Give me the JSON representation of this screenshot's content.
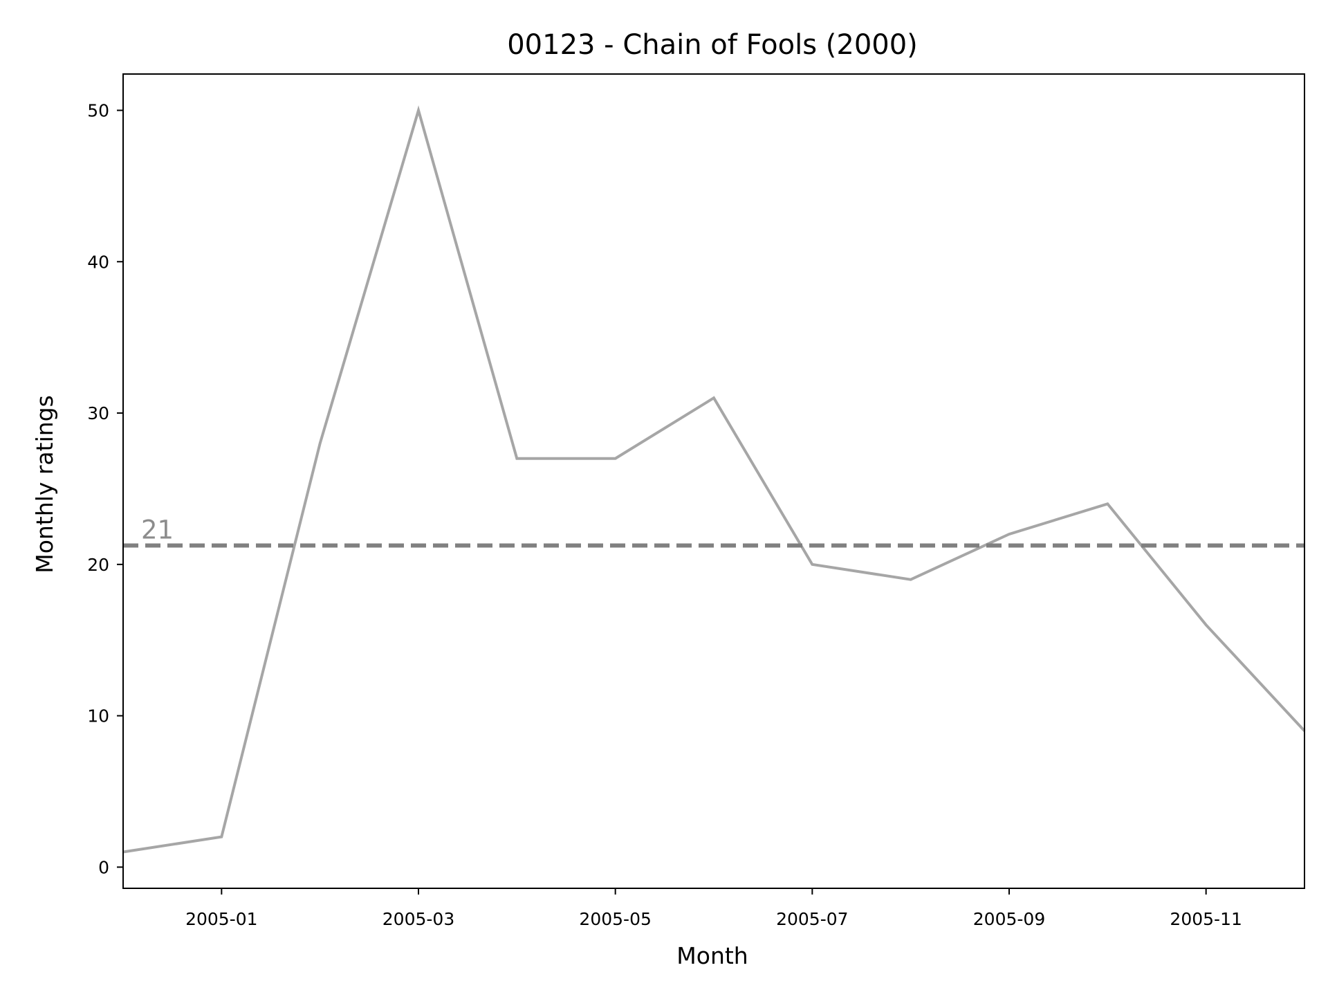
{
  "chart_data": {
    "type": "line",
    "title": "00123 - Chain of Fools (2000)",
    "xlabel": "Month",
    "ylabel": "Monthly ratings",
    "x": [
      "2004-12",
      "2005-01",
      "2005-02",
      "2005-03",
      "2005-04",
      "2005-05",
      "2005-06",
      "2005-07",
      "2005-08",
      "2005-09",
      "2005-10",
      "2005-11",
      "2005-12"
    ],
    "series": [
      {
        "values": [
          1,
          2,
          28,
          50,
          27,
          27,
          31,
          20,
          19,
          22,
          24,
          16,
          9
        ]
      }
    ],
    "xlim": [
      "2004-12",
      "2005-12"
    ],
    "ylim": [
      -1.4,
      52.4
    ],
    "xticks": [
      "2005-01",
      "2005-03",
      "2005-05",
      "2005-07",
      "2005-09",
      "2005-11"
    ],
    "yticks": [
      0,
      10,
      20,
      30,
      40,
      50
    ],
    "reference_line": {
      "value": 21.25,
      "label": "21",
      "style": "dashed"
    },
    "grid": false,
    "colors": {
      "series": "#a6a6a6",
      "reference": "#808080",
      "reference_label": "#8c8c8c",
      "axes": "#000000"
    }
  }
}
